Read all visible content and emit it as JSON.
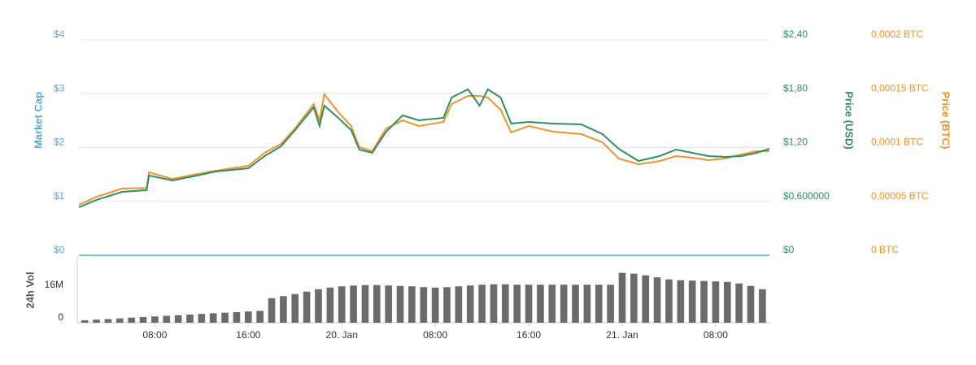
{
  "chart_data": [
    {
      "type": "line",
      "y_label": "Market Cap",
      "y_color": "#5aa7de",
      "y2_label": "Price (USD)",
      "y3_label": "Price (BTC)",
      "xlim": [
        1.5,
        60.6
      ],
      "ylim": [
        0,
        4
      ],
      "yticks": [
        {
          "value": 0,
          "label": "$0"
        },
        {
          "value": 1,
          "label": "$1"
        },
        {
          "value": 2,
          "label": "$2"
        },
        {
          "value": 3,
          "label": "$3"
        },
        {
          "value": 4,
          "label": "$4"
        }
      ],
      "y2lim": [
        0,
        2.4
      ],
      "y2ticks": [
        {
          "value": 0,
          "label": "$0"
        },
        {
          "value": 0.6,
          "label": "$0,600000"
        },
        {
          "value": 1.2,
          "label": "$1,20"
        },
        {
          "value": 1.8,
          "label": "$1,80"
        },
        {
          "value": 2.4,
          "label": "$2,40"
        }
      ],
      "y3lim": [
        0,
        0.0002
      ],
      "y3ticks": [
        {
          "value": 0,
          "label": "0 BTC"
        },
        {
          "value": 5e-05,
          "label": "0,00005 BTC"
        },
        {
          "value": 0.0001,
          "label": "0,0001 BTC"
        },
        {
          "value": 0.00015,
          "label": "0,00015 BTC"
        },
        {
          "value": 0.0002,
          "label": "0,0002 BTC"
        }
      ],
      "grid": true,
      "x": [
        1.5,
        3.0,
        5.2,
        7.3,
        7.5,
        9.5,
        11.3,
        13.2,
        16.0,
        17.4,
        18.8,
        20.0,
        21.6,
        22.1,
        22.5,
        23.7,
        24.8,
        25.5,
        26.6,
        27.8,
        29.2,
        30.6,
        32.7,
        33.4,
        34.8,
        35.8,
        36.5,
        37.6,
        38.5,
        40.0,
        42.1,
        44.5,
        46.3,
        47.7,
        49.4,
        51.2,
        52.6,
        54.0,
        55.4,
        56.8,
        58.2,
        59.5,
        60.6
      ],
      "series": [
        {
          "name": "Price (USD)",
          "color": "#2f8f62",
          "axis": "y2",
          "values": [
            0.534,
            0.616,
            0.706,
            0.725,
            0.888,
            0.833,
            0.879,
            0.933,
            0.969,
            1.105,
            1.214,
            1.395,
            1.648,
            1.44,
            1.666,
            1.531,
            1.395,
            1.177,
            1.141,
            1.377,
            1.558,
            1.503,
            1.531,
            1.757,
            1.848,
            1.666,
            1.848,
            1.757,
            1.467,
            1.485,
            1.467,
            1.458,
            1.35,
            1.186,
            1.051,
            1.105,
            1.177,
            1.141,
            1.105,
            1.096,
            1.105,
            1.141,
            1.186
          ]
        },
        {
          "name": "Price (BTC)",
          "color": "#f0932b",
          "axis": "y3",
          "values": [
            4.68e-05,
            5.43e-05,
            6.19e-05,
            6.26e-05,
            7.7e-05,
            7.09e-05,
            7.47e-05,
            7.85e-05,
            8.3e-05,
            9.51e-05,
            0.0001034,
            0.0001177,
            0.0001404,
            0.0001253,
            0.0001494,
            0.0001328,
            0.00012,
            0.0001004,
            9.66e-05,
            0.0001177,
            0.0001253,
            0.00012,
            0.0001238,
            0.0001404,
            0.0001479,
            0.0001479,
            0.0001464,
            0.0001351,
            0.000114,
            0.00012,
            0.0001147,
            0.0001125,
            0.0001049,
            8.98e-05,
            8.45e-05,
            8.75e-05,
            9.21e-05,
            9.06e-05,
            8.83e-05,
            8.98e-05,
            9.36e-05,
            9.66e-05,
            9.66e-05
          ]
        }
      ]
    },
    {
      "type": "bar",
      "y_label": "24h Vol",
      "color": "#6b6b6b",
      "xlim": [
        1.5,
        60.6
      ],
      "xticks": [
        {
          "value": 8,
          "label": "08:00"
        },
        {
          "value": 16,
          "label": "16:00"
        },
        {
          "value": 24,
          "label": "20. Jan"
        },
        {
          "value": 32,
          "label": "08:00"
        },
        {
          "value": 40,
          "label": "16:00"
        },
        {
          "value": 48,
          "label": "21. Jan"
        },
        {
          "value": 56,
          "label": "08:00"
        }
      ],
      "ylim": [
        0,
        33000000
      ],
      "yticks": [
        0,
        {
          "value": 16000000,
          "label": "16M"
        }
      ],
      "x": [
        2,
        3,
        4,
        5,
        6,
        7,
        8,
        9,
        10,
        11,
        12,
        13,
        14,
        15,
        16,
        17,
        18,
        19,
        20,
        21,
        22,
        23,
        24,
        25,
        26,
        27,
        28,
        29,
        30,
        31,
        32,
        33,
        34,
        35,
        36,
        37,
        38,
        39,
        40,
        41,
        42,
        43,
        44,
        45,
        46,
        47,
        48,
        49,
        50,
        51,
        52,
        53,
        54,
        55,
        56,
        57,
        58,
        59,
        60
      ],
      "values": [
        1200000,
        1500000,
        1800000,
        2100000,
        2500000,
        2800000,
        3100000,
        3400000,
        3700000,
        4000000,
        4300000,
        4600000,
        4900000,
        5200000,
        5500000,
        5800000,
        12000000,
        13000000,
        14000000,
        15200000,
        16400000,
        17200000,
        17800000,
        18200000,
        18400000,
        18400000,
        18200000,
        18000000,
        17800000,
        17400000,
        17200000,
        17400000,
        17800000,
        18200000,
        18600000,
        18800000,
        18800000,
        18600000,
        18600000,
        18600000,
        18600000,
        18600000,
        18600000,
        18600000,
        18600000,
        18600000,
        24400000,
        24000000,
        23200000,
        22200000,
        21200000,
        20800000,
        20600000,
        20400000,
        20200000,
        20000000,
        19200000,
        18000000,
        16400000
      ]
    }
  ]
}
